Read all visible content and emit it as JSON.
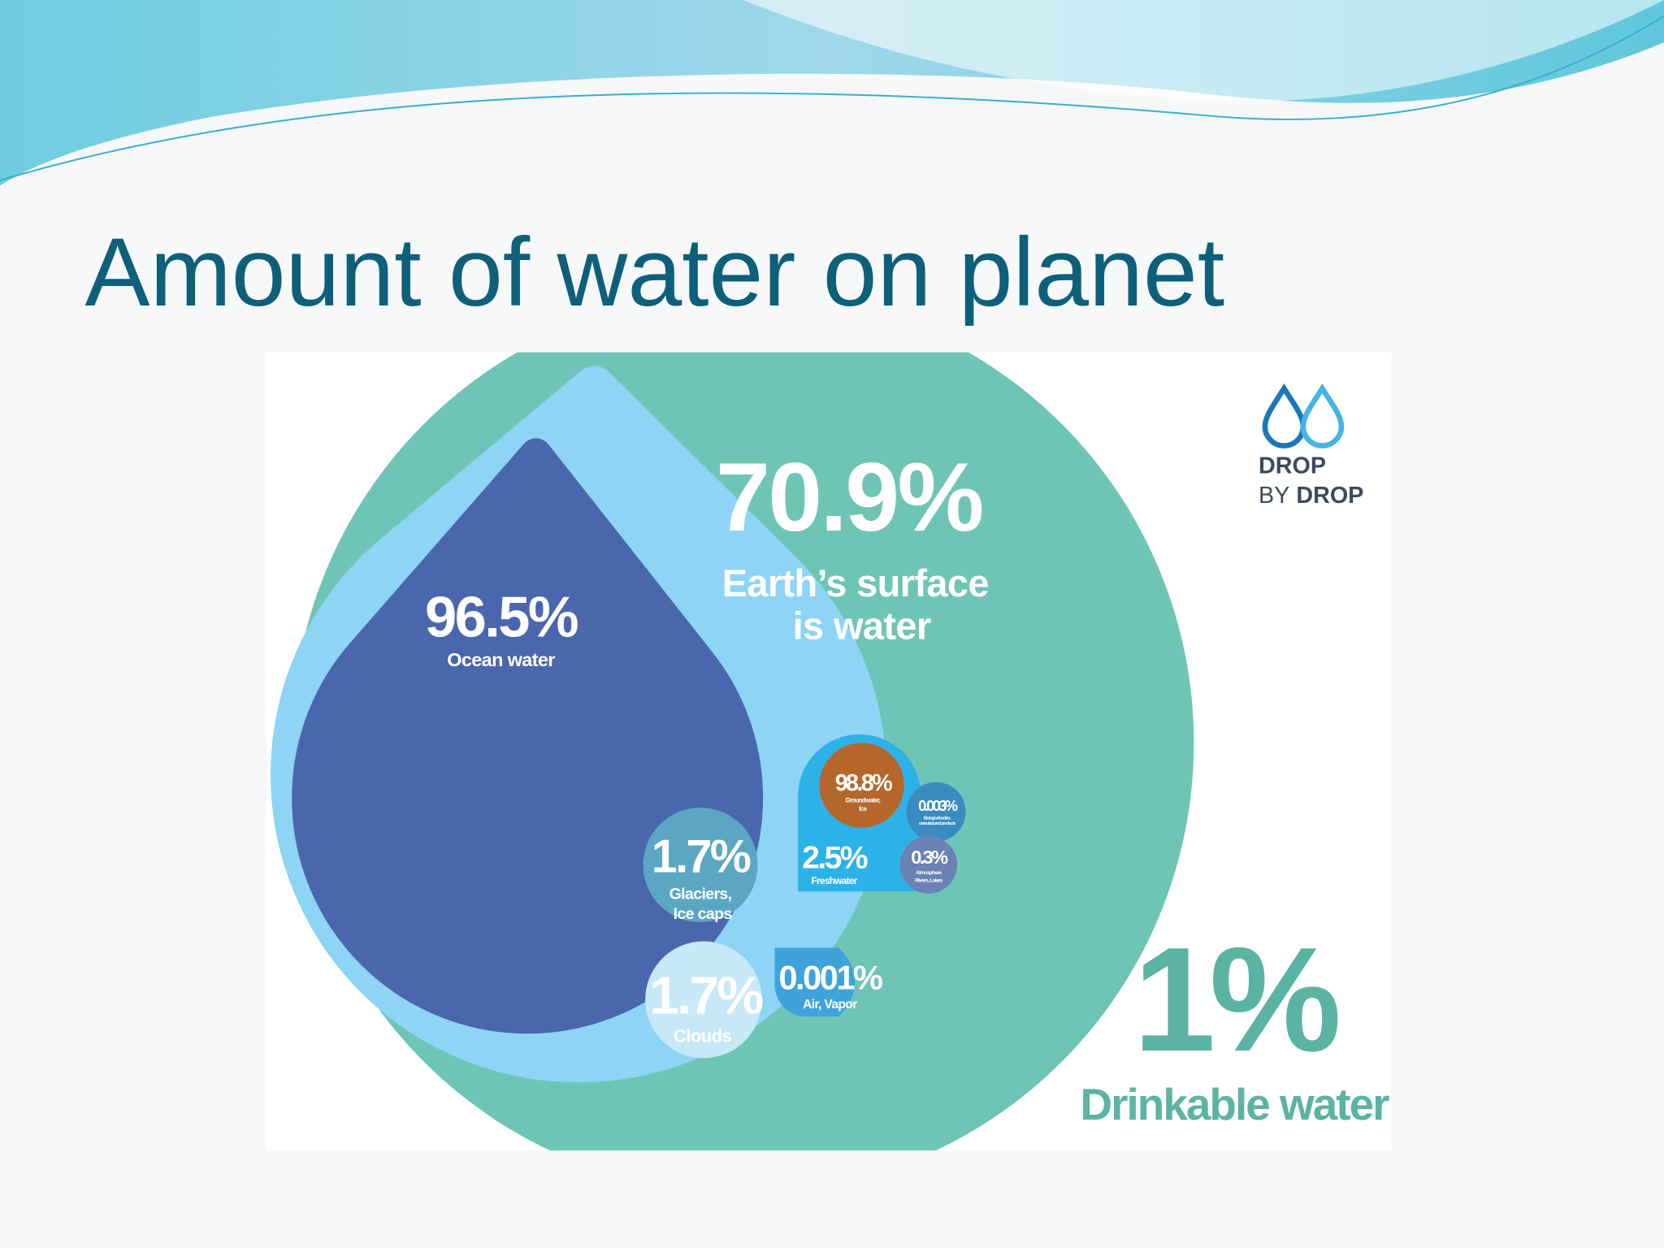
{
  "title": "Amount of water on planet",
  "infographic": {
    "surface": {
      "value": "70.9%",
      "lines": [
        "Earth’s surface",
        "is water"
      ]
    },
    "ocean": {
      "value": "96.5%",
      "label": "Ocean water"
    },
    "glaciers": {
      "value": "1.7%",
      "lines": [
        "Glaciers,",
        "Ice caps"
      ]
    },
    "clouds": {
      "value": "1.7%",
      "label": "Clouds"
    },
    "air": {
      "value": "0.001%",
      "label": "Air, Vapor"
    },
    "freshwater": {
      "value": "2.5%",
      "label": "Freshwater"
    },
    "groundwater": {
      "value": "98.8%",
      "lines": [
        "Groundwater,",
        "Ice"
      ]
    },
    "biological": {
      "value": "0.003%",
      "lines": [
        "Biological bodies,",
        "manufactured products"
      ]
    },
    "rivers": {
      "value": "0.3%",
      "lines": [
        "Atmosphere",
        "Rivers, Lakes"
      ]
    },
    "drinkable": {
      "value": "1%",
      "label": "Drinkable water"
    }
  },
  "logo": {
    "line1": "DROP",
    "line2a": "BY",
    "line2b": "DROP"
  }
}
